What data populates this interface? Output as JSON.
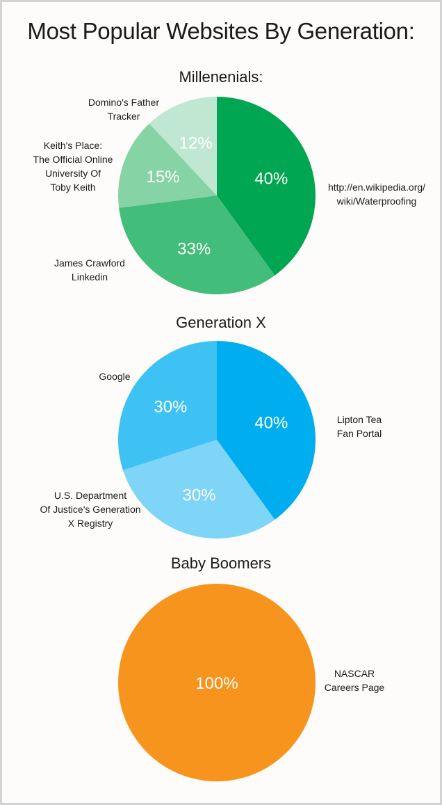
{
  "title": "Most Popular Websites By Generation:",
  "chart_data": [
    {
      "type": "pie",
      "title": "Millenenials:",
      "slices": [
        {
          "label": "http://en.wikipedia.org/\nwiki/Waterproofing",
          "value": 40,
          "value_label": "40%",
          "color": "#00a651"
        },
        {
          "label": "James Crawford\nLinkedin",
          "value": 33,
          "value_label": "33%",
          "color": "#42bd7a"
        },
        {
          "label": "Keith's Place:\nThe Official Online\nUniversity Of\nToby Keith",
          "value": 15,
          "value_label": "15%",
          "color": "#86d3a5"
        },
        {
          "label": "Domino's Father\nTracker",
          "value": 12,
          "value_label": "12%",
          "color": "#c0e7d2"
        }
      ]
    },
    {
      "type": "pie",
      "title": "Generation X",
      "slices": [
        {
          "label": "Lipton Tea\nFan Portal",
          "value": 40,
          "value_label": "40%",
          "color": "#00aeef"
        },
        {
          "label": "U.S. Department\nOf Justice's Generation\nX Registry",
          "value": 30,
          "value_label": "30%",
          "color": "#7fd5f8"
        },
        {
          "label": "Google",
          "value": 30,
          "value_label": "30%",
          "color": "#3ec1f3"
        }
      ]
    },
    {
      "type": "pie",
      "title": "Baby Boomers",
      "slices": [
        {
          "label": "NASCAR\nCareers Page",
          "value": 100,
          "value_label": "100%",
          "color": "#f7941d"
        }
      ]
    }
  ]
}
